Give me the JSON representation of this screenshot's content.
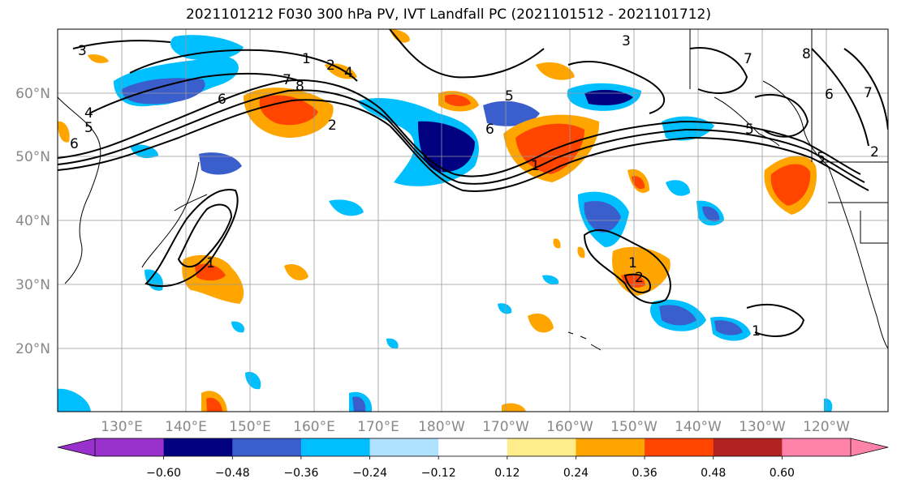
{
  "title": "2021101212 F030 300 hPa PV, IVT Landfall PC (2021101512 - 2021101712)",
  "lat_labels": [
    "60°N",
    "50°N",
    "40°N",
    "30°N",
    "20°N"
  ],
  "lon_labels": [
    "130°E",
    "140°E",
    "150°E",
    "160°E",
    "170°E",
    "180°W",
    "170°W",
    "160°W",
    "150°W",
    "140°W",
    "130°W",
    "120°W"
  ],
  "colorbar": {
    "ticks": [
      "−0.60",
      "−0.48",
      "−0.36",
      "−0.24",
      "−0.12",
      "0.12",
      "0.24",
      "0.36",
      "0.48",
      "0.60"
    ],
    "colors": [
      "#9932cc",
      "#000080",
      "#3a5fcd",
      "#00bfff",
      "#b0e2ff",
      "#ffffff",
      "#ffec8b",
      "#ffa500",
      "#ff4500",
      "#b22222",
      "#ff82ab"
    ]
  },
  "contour_labels": [
    "3",
    "1",
    "7",
    "8",
    "2",
    "4",
    "6",
    "4",
    "5",
    "6",
    "5",
    "3",
    "7",
    "8",
    "5",
    "6",
    "1",
    "1",
    "2",
    "1",
    "2",
    "7",
    "6",
    "5",
    "1",
    "2"
  ]
}
